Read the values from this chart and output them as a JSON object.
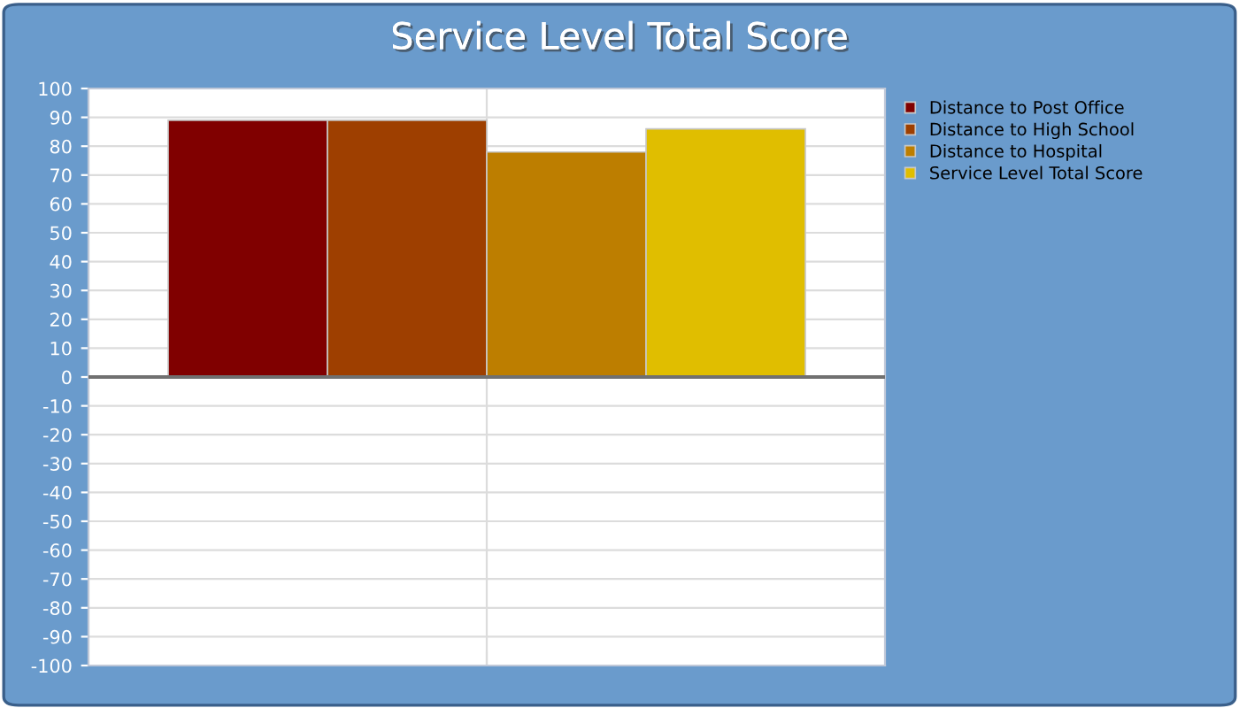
{
  "chart_data": {
    "type": "bar",
    "title": "Service Level Total Score",
    "categories": [
      null
    ],
    "series": [
      {
        "name": "Distance to Post Office",
        "color": "#800000",
        "values": [
          89
        ]
      },
      {
        "name": "Distance to High School",
        "color": "#9e3f00",
        "values": [
          89
        ]
      },
      {
        "name": "Distance to Hospital",
        "color": "#bd7e00",
        "values": [
          78
        ]
      },
      {
        "name": "Service Level Total Score",
        "color": "#e0be00",
        "values": [
          86
        ]
      }
    ],
    "ylim": [
      -100,
      100
    ],
    "yticks": [
      -100,
      -90,
      -80,
      -70,
      -60,
      -50,
      -40,
      -30,
      -20,
      -10,
      0,
      10,
      20,
      30,
      40,
      50,
      60,
      70,
      80,
      90,
      100
    ],
    "grid": true,
    "legend": "right"
  }
}
